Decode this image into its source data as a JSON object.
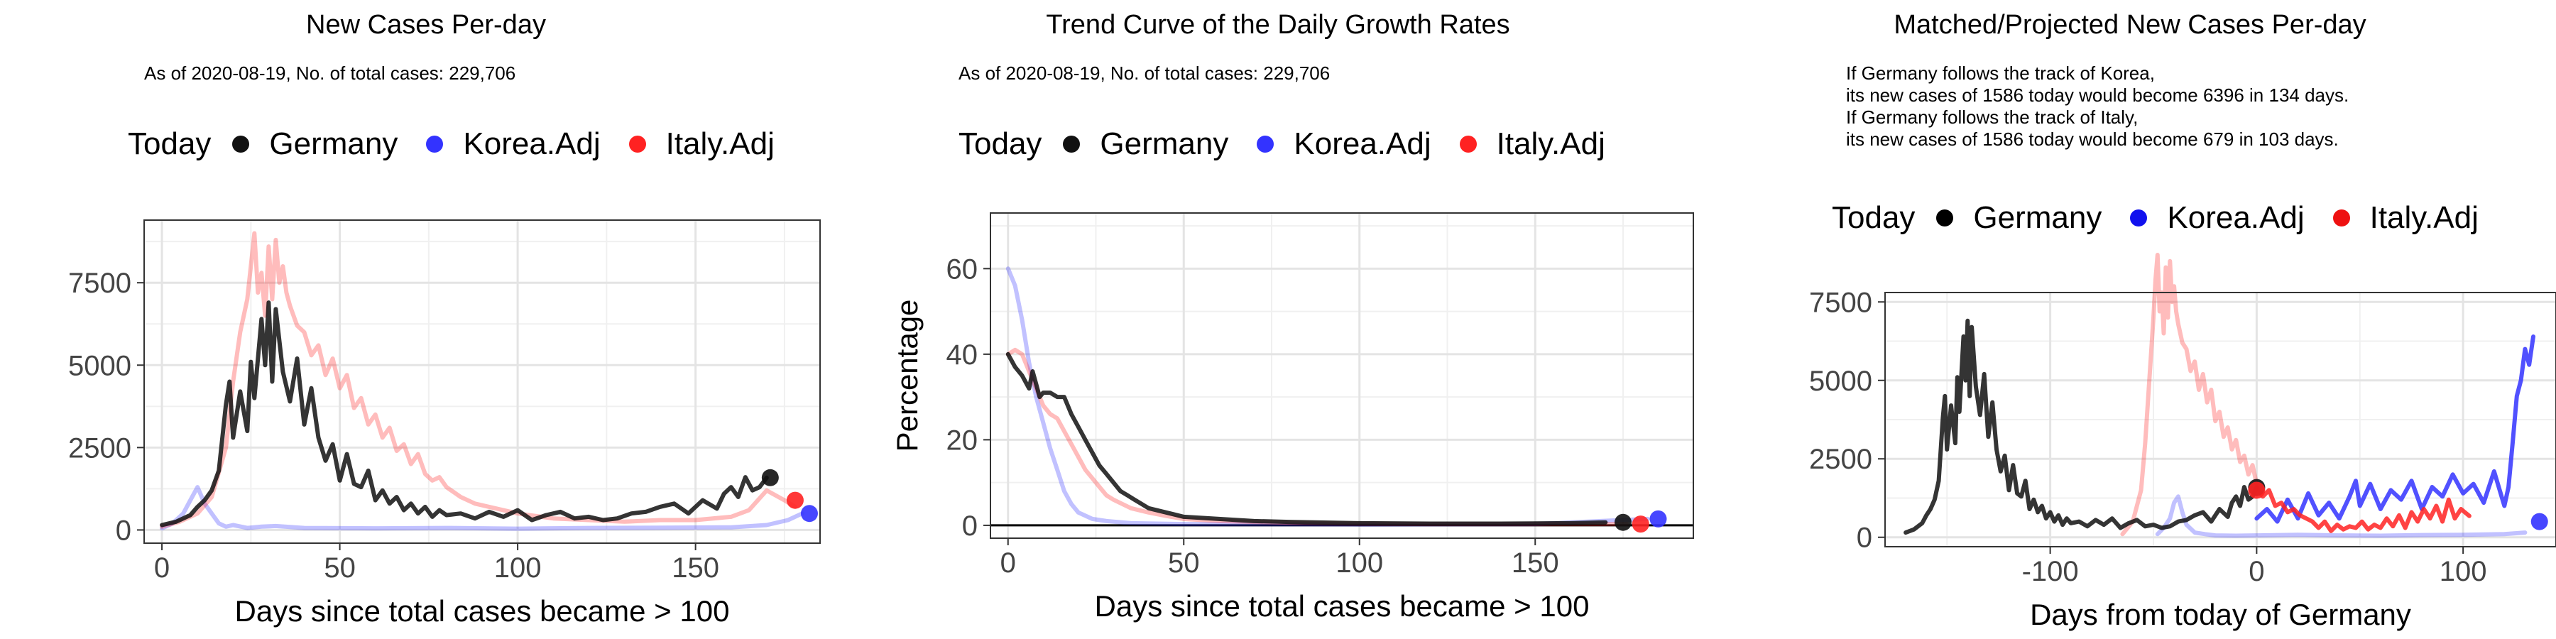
{
  "colors": {
    "Germany": "#111111",
    "Korea.Adj": "#3333ff",
    "Italy.Adj": "#ff2222"
  },
  "chart_data": [
    {
      "type": "line",
      "title": "New Cases Per-day",
      "subtitle": "As of 2020-08-19, No. of total cases: 229,706",
      "xlabel": "Days since total cases became > 100",
      "ylabel": "",
      "xlim": [
        -5,
        185
      ],
      "ylim": [
        -400,
        9400
      ],
      "xticks": [
        0,
        50,
        100,
        150
      ],
      "yticks": [
        0,
        2500,
        5000,
        7500
      ],
      "grid": true,
      "legend": {
        "title": "Today",
        "placement": "top",
        "entries": [
          "Germany",
          "Korea.Adj",
          "Italy.Adj"
        ]
      },
      "series": [
        {
          "name": "Germany",
          "faded": false,
          "x": [
            0,
            4,
            8,
            10,
            12,
            14,
            16,
            18,
            19,
            20,
            21,
            22,
            24,
            25,
            26,
            28,
            29,
            30,
            31,
            32,
            34,
            36,
            38,
            40,
            42,
            44,
            46,
            48,
            50,
            52,
            54,
            56,
            58,
            60,
            62,
            64,
            66,
            68,
            70,
            72,
            74,
            76,
            78,
            80,
            84,
            88,
            92,
            96,
            100,
            104,
            108,
            112,
            116,
            120,
            124,
            128,
            132,
            136,
            140,
            144,
            148,
            152,
            156,
            158,
            160,
            162,
            164,
            166,
            168,
            170
          ],
          "y": [
            150,
            250,
            450,
            700,
            900,
            1200,
            1800,
            3800,
            4500,
            2800,
            3500,
            4200,
            3000,
            5100,
            4000,
            6400,
            5000,
            6900,
            4500,
            6700,
            4800,
            3900,
            5200,
            3200,
            4300,
            2800,
            2100,
            2600,
            1500,
            2300,
            1400,
            1300,
            1800,
            900,
            1200,
            800,
            1000,
            600,
            800,
            500,
            700,
            400,
            600,
            450,
            500,
            350,
            550,
            400,
            600,
            300,
            450,
            550,
            350,
            400,
            300,
            350,
            500,
            550,
            700,
            800,
            500,
            900,
            650,
            1100,
            1300,
            1000,
            1600,
            1200,
            1300,
            1586
          ]
        },
        {
          "name": "Korea.Adj",
          "faded": true,
          "x": [
            0,
            3,
            6,
            8,
            10,
            12,
            14,
            16,
            18,
            20,
            24,
            28,
            32,
            40,
            60,
            80,
            100,
            120,
            140,
            160,
            170,
            176,
            180
          ],
          "y": [
            50,
            200,
            500,
            900,
            1300,
            800,
            500,
            200,
            100,
            150,
            60,
            100,
            120,
            60,
            50,
            60,
            40,
            60,
            70,
            80,
            150,
            300,
            500
          ]
        },
        {
          "name": "Italy.Adj",
          "faded": true,
          "x": [
            0,
            5,
            10,
            14,
            18,
            20,
            22,
            24,
            25,
            26,
            27,
            28,
            29,
            30,
            31,
            32,
            33,
            34,
            35,
            36,
            38,
            40,
            42,
            44,
            46,
            48,
            50,
            52,
            54,
            56,
            58,
            60,
            62,
            64,
            66,
            68,
            70,
            72,
            74,
            76,
            78,
            80,
            84,
            88,
            92,
            96,
            100,
            110,
            120,
            130,
            140,
            150,
            160,
            165,
            170,
            175,
            178
          ],
          "y": [
            100,
            250,
            500,
            1000,
            2500,
            4500,
            6000,
            7000,
            8000,
            9000,
            7200,
            7800,
            6500,
            8600,
            7000,
            8800,
            7500,
            8000,
            7200,
            6800,
            6200,
            6000,
            5300,
            5600,
            4700,
            5200,
            4300,
            4700,
            3700,
            4000,
            3200,
            3500,
            2800,
            3100,
            2400,
            2600,
            2000,
            2300,
            1700,
            1500,
            1600,
            1300,
            1000,
            800,
            700,
            600,
            500,
            350,
            300,
            250,
            300,
            300,
            400,
            600,
            1200,
            900,
            700
          ]
        }
      ],
      "today": [
        {
          "name": "Germany",
          "x": 171,
          "y": 1586
        },
        {
          "name": "Korea.Adj",
          "x": 182,
          "y": 500
        },
        {
          "name": "Italy.Adj",
          "x": 178,
          "y": 900
        }
      ]
    },
    {
      "type": "line",
      "title": "Trend Curve of the Daily Growth Rates",
      "subtitle": "As of 2020-08-19, No. of total cases: 229,706",
      "xlabel": "Days since total cases became > 100",
      "ylabel": "Percentage",
      "xlim": [
        -5,
        195
      ],
      "ylim": [
        -3,
        73
      ],
      "xticks": [
        0,
        50,
        100,
        150
      ],
      "yticks": [
        0,
        20,
        40,
        60
      ],
      "hline": 0,
      "grid": true,
      "legend": {
        "title": "Today",
        "placement": "top",
        "entries": [
          "Germany",
          "Korea.Adj",
          "Italy.Adj"
        ]
      },
      "series": [
        {
          "name": "Germany",
          "faded": false,
          "x": [
            0,
            2,
            4,
            6,
            7,
            8,
            9,
            10,
            12,
            14,
            16,
            18,
            20,
            22,
            24,
            26,
            28,
            30,
            32,
            34,
            36,
            38,
            40,
            45,
            50,
            60,
            70,
            80,
            100,
            120,
            140,
            160,
            170
          ],
          "y": [
            40,
            37,
            35,
            32,
            36,
            33,
            30,
            31,
            31,
            30,
            30,
            26,
            23,
            20,
            17,
            14,
            12,
            10,
            8,
            7,
            6,
            5,
            4,
            3,
            2,
            1.5,
            1,
            0.8,
            0.5,
            0.4,
            0.4,
            0.5,
            0.7
          ]
        },
        {
          "name": "Korea.Adj",
          "faded": true,
          "x": [
            0,
            2,
            4,
            6,
            8,
            10,
            12,
            14,
            16,
            18,
            20,
            24,
            28,
            35,
            50,
            100,
            150,
            182
          ],
          "y": [
            60,
            56,
            48,
            38,
            30,
            24,
            18,
            13,
            8,
            5,
            3,
            1.5,
            1,
            0.5,
            0.3,
            0.2,
            0.3,
            1.5
          ]
        },
        {
          "name": "Italy.Adj",
          "faded": true,
          "x": [
            0,
            2,
            4,
            6,
            8,
            10,
            12,
            14,
            16,
            18,
            20,
            22,
            24,
            26,
            28,
            30,
            35,
            40,
            45,
            50,
            60,
            70,
            80,
            100,
            120,
            140,
            160,
            176
          ],
          "y": [
            40,
            41,
            40,
            36,
            32,
            28,
            26,
            25,
            22,
            19,
            16,
            13,
            11,
            9,
            7,
            6,
            4,
            3,
            2.2,
            1.5,
            1,
            0.8,
            0.6,
            0.4,
            0.3,
            0.3,
            0.3,
            0.3
          ]
        }
      ],
      "today": [
        {
          "name": "Germany",
          "x": 175,
          "y": 0.7
        },
        {
          "name": "Korea.Adj",
          "x": 185,
          "y": 1.5
        },
        {
          "name": "Italy.Adj",
          "x": 180,
          "y": 0.3
        }
      ]
    },
    {
      "type": "line",
      "title": "Matched/Projected New Cases Per-day",
      "subtitle": "If Germany follows the track of Korea,\nits new cases of 1586 today would become 6396 in 134 days.\nIf Germany follows the track of Italy,\nits new cases of 1586 today would become 679 in 103 days.",
      "xlabel": "Days from today of Germany",
      "ylabel": "",
      "xlim": [
        -180,
        145
      ],
      "ylim": [
        -300,
        7800
      ],
      "xticks": [
        -100,
        0,
        100
      ],
      "yticks": [
        0,
        2500,
        5000,
        7500
      ],
      "grid": true,
      "legend": {
        "title": "Today",
        "placement": "top",
        "entries": [
          "Germany",
          "Korea.Adj",
          "Italy.Adj"
        ]
      },
      "series": [
        {
          "name": "Germany",
          "faded": false,
          "x": [
            -170,
            -166,
            -162,
            -160,
            -158,
            -156,
            -154,
            -152,
            -151,
            -150,
            -149,
            -148,
            -146,
            -145,
            -144,
            -142,
            -141,
            -140,
            -139,
            -138,
            -136,
            -134,
            -132,
            -130,
            -128,
            -126,
            -124,
            -122,
            -120,
            -118,
            -116,
            -114,
            -112,
            -110,
            -108,
            -106,
            -104,
            -102,
            -100,
            -98,
            -96,
            -94,
            -92,
            -90,
            -86,
            -82,
            -78,
            -74,
            -70,
            -66,
            -62,
            -58,
            -54,
            -50,
            -46,
            -42,
            -38,
            -34,
            -30,
            -26,
            -22,
            -18,
            -14,
            -12,
            -10,
            -8,
            -6,
            -4,
            -2,
            0
          ],
          "y": [
            150,
            250,
            450,
            700,
            900,
            1200,
            1800,
            3800,
            4500,
            2800,
            3500,
            4200,
            3000,
            5100,
            4000,
            6400,
            5000,
            6900,
            4500,
            6700,
            4800,
            3900,
            5200,
            3200,
            4300,
            2800,
            2100,
            2600,
            1500,
            2300,
            1400,
            1300,
            1800,
            900,
            1200,
            800,
            1000,
            600,
            800,
            500,
            700,
            400,
            600,
            450,
            500,
            350,
            550,
            400,
            600,
            300,
            450,
            550,
            350,
            400,
            300,
            350,
            500,
            550,
            700,
            800,
            500,
            900,
            650,
            1100,
            1300,
            1000,
            1600,
            1200,
            1300,
            1586
          ]
        },
        {
          "name": "Korea.Adj",
          "faded": true,
          "x": [
            -48,
            -45,
            -42,
            -40,
            -38,
            -36,
            -34,
            -30,
            -25,
            -20,
            -10,
            0,
            20,
            40,
            60,
            80,
            100,
            120,
            130
          ],
          "y": [
            100,
            300,
            600,
            1100,
            1300,
            800,
            400,
            150,
            100,
            60,
            50,
            60,
            80,
            60,
            50,
            70,
            80,
            100,
            150
          ]
        },
        {
          "name": "Korea.Adj",
          "faded": false,
          "x": [
            0,
            5,
            10,
            15,
            20,
            25,
            30,
            35,
            40,
            45,
            48,
            50,
            55,
            60,
            65,
            70,
            75,
            80,
            85,
            90,
            95,
            100,
            105,
            110,
            115,
            120,
            122,
            124,
            126,
            128,
            130,
            132,
            134
          ],
          "y": [
            600,
            900,
            500,
            1200,
            600,
            1400,
            700,
            1100,
            600,
            1300,
            1800,
            1000,
            1700,
            900,
            1500,
            1200,
            1800,
            900,
            1600,
            1300,
            2000,
            1400,
            1700,
            1100,
            2100,
            1000,
            1600,
            3000,
            4500,
            5000,
            6000,
            5500,
            6396
          ]
        },
        {
          "name": "Italy.Adj",
          "faded": true,
          "x": [
            -65,
            -60,
            -56,
            -54,
            -52,
            -50,
            -49,
            -48,
            -47,
            -46,
            -45,
            -44,
            -43,
            -42,
            -41,
            -40,
            -39,
            -38,
            -36,
            -34,
            -32,
            -30,
            -28,
            -26,
            -24,
            -22,
            -20,
            -18,
            -16,
            -14,
            -12,
            -10,
            -8,
            -6,
            -4,
            -2,
            0
          ],
          "y": [
            100,
            500,
            1500,
            3000,
            5000,
            7000,
            8200,
            9000,
            7200,
            7800,
            6500,
            8600,
            7000,
            8800,
            7500,
            8000,
            7200,
            6800,
            6200,
            6000,
            5300,
            5600,
            4700,
            5200,
            4300,
            4700,
            3700,
            4000,
            3200,
            3500,
            2800,
            3100,
            2400,
            2600,
            2000,
            2300,
            1700
          ]
        },
        {
          "name": "Italy.Adj",
          "faded": false,
          "x": [
            0,
            3,
            6,
            9,
            12,
            15,
            18,
            21,
            24,
            27,
            30,
            33,
            36,
            39,
            42,
            45,
            48,
            51,
            54,
            57,
            60,
            63,
            66,
            69,
            72,
            75,
            78,
            81,
            84,
            87,
            90,
            93,
            96,
            99,
            103
          ],
          "y": [
            1600,
            1300,
            1500,
            1000,
            1100,
            800,
            900,
            700,
            600,
            500,
            300,
            500,
            200,
            400,
            250,
            350,
            300,
            500,
            250,
            400,
            300,
            600,
            350,
            700,
            300,
            800,
            500,
            900,
            600,
            1000,
            500,
            1200,
            600,
            900,
            679
          ]
        }
      ],
      "today": [
        {
          "name": "Germany",
          "x": 0,
          "y": 1586
        },
        {
          "name": "Korea.Adj",
          "x": 137,
          "y": 500
        },
        {
          "name": "Italy.Adj",
          "x": 0,
          "y": 1500
        }
      ]
    }
  ]
}
